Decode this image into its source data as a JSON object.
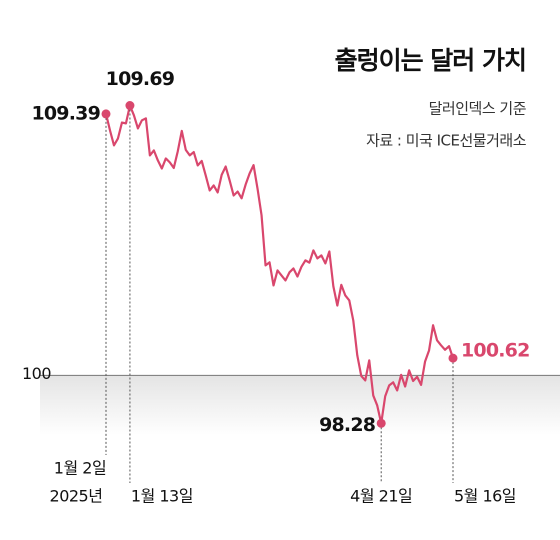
{
  "chart_data": {
    "type": "line",
    "title": "출렁이는 달러 가치",
    "subtitle": "달러인덱스 기준",
    "source": "자료 : 미국 ICE선물거래소",
    "year": "2025년",
    "color": "#d9476d",
    "categories": [
      "1월 2일",
      null,
      null,
      null,
      null,
      null,
      "1월 13일",
      null,
      null,
      null,
      null,
      null,
      null,
      null,
      null,
      null,
      null,
      null,
      null,
      null,
      null,
      null,
      null,
      null,
      null,
      null,
      null,
      null,
      null,
      null,
      null,
      null,
      null,
      null,
      null,
      null,
      null,
      null,
      null,
      null,
      null,
      null,
      null,
      null,
      null,
      null,
      null,
      null,
      null,
      null,
      null,
      null,
      null,
      null,
      null,
      null,
      null,
      null,
      null,
      null,
      null,
      null,
      null,
      null,
      null,
      null,
      null,
      null,
      null,
      "4월 21일",
      null,
      null,
      null,
      null,
      null,
      null,
      null,
      null,
      null,
      null,
      null,
      null,
      null,
      null,
      null,
      null,
      null,
      "5월 16일"
    ],
    "values": [
      109.39,
      108.8,
      108.26,
      108.51,
      109.08,
      109.05,
      109.69,
      109.34,
      108.87,
      109.16,
      109.23,
      107.9,
      108.08,
      107.72,
      107.43,
      107.79,
      107.65,
      107.45,
      108.05,
      108.78,
      108.1,
      107.9,
      108.02,
      107.54,
      107.7,
      107.18,
      106.64,
      106.82,
      106.57,
      107.2,
      107.5,
      107.0,
      106.46,
      106.6,
      106.36,
      106.85,
      107.25,
      107.55,
      106.7,
      105.75,
      103.95,
      104.06,
      103.23,
      103.77,
      103.59,
      103.41,
      103.7,
      103.84,
      103.55,
      103.9,
      104.13,
      104.05,
      104.49,
      104.2,
      104.31,
      104.02,
      104.45,
      103.2,
      102.51,
      103.25,
      102.87,
      102.69,
      101.97,
      100.72,
      99.98,
      99.82,
      100.54,
      99.28,
      98.92,
      98.28,
      99.25,
      99.64,
      99.75,
      99.46,
      100.02,
      99.6,
      100.18,
      99.8,
      99.95,
      99.66,
      100.5,
      100.9,
      101.8,
      101.26,
      101.08,
      100.92,
      101.05,
      100.62
    ],
    "ylim": [
      97.5,
      110.5
    ],
    "yticks": [
      100
    ]
  }
}
